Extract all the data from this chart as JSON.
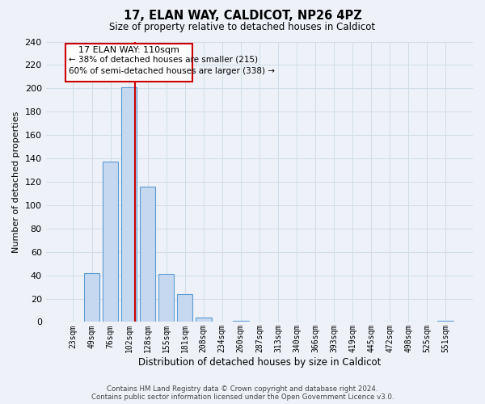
{
  "title": "17, ELAN WAY, CALDICOT, NP26 4PZ",
  "subtitle": "Size of property relative to detached houses in Caldicot",
  "xlabel": "Distribution of detached houses by size in Caldicot",
  "ylabel": "Number of detached properties",
  "bar_labels": [
    "23sqm",
    "49sqm",
    "76sqm",
    "102sqm",
    "128sqm",
    "155sqm",
    "181sqm",
    "208sqm",
    "234sqm",
    "260sqm",
    "287sqm",
    "313sqm",
    "340sqm",
    "366sqm",
    "393sqm",
    "419sqm",
    "445sqm",
    "472sqm",
    "498sqm",
    "525sqm",
    "551sqm"
  ],
  "bar_values": [
    0,
    42,
    137,
    201,
    116,
    41,
    24,
    4,
    0,
    1,
    0,
    0,
    0,
    0,
    0,
    0,
    0,
    0,
    0,
    0,
    1
  ],
  "bar_color": "#c5d8f0",
  "bar_edge_color": "#5b9bd5",
  "bar_edge_width": 0.8,
  "vline_color": "#cc0000",
  "ylim": [
    0,
    240
  ],
  "yticks": [
    0,
    20,
    40,
    60,
    80,
    100,
    120,
    140,
    160,
    180,
    200,
    220,
    240
  ],
  "annotation_title": "17 ELAN WAY: 110sqm",
  "annotation_line1": "← 38% of detached houses are smaller (215)",
  "annotation_line2": "60% of semi-detached houses are larger (338) →",
  "annotation_box_color": "#cc0000",
  "grid_color": "#d0dce8",
  "footnote1": "Contains HM Land Registry data © Crown copyright and database right 2024.",
  "footnote2": "Contains public sector information licensed under the Open Government Licence v3.0.",
  "background_color": "#eef2f8"
}
